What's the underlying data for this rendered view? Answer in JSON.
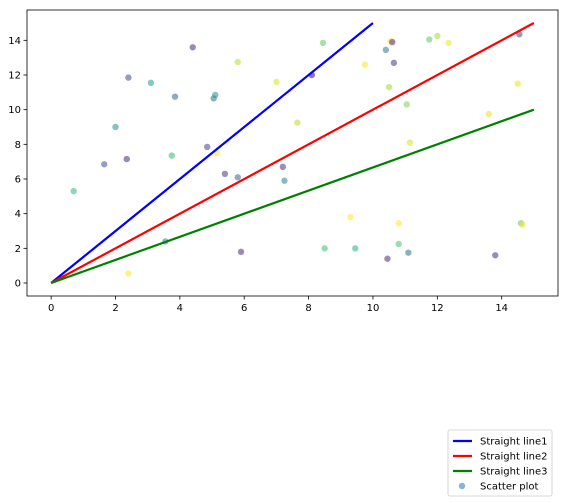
{
  "chart_data": {
    "type": "line+scatter",
    "title": "",
    "xlabel": "",
    "ylabel": "",
    "xlim": [
      -0.75,
      15.75
    ],
    "ylim": [
      -0.75,
      15.75
    ],
    "xticks": [
      0,
      2,
      4,
      6,
      8,
      10,
      12,
      14
    ],
    "yticks": [
      0,
      2,
      4,
      6,
      8,
      10,
      12,
      14
    ],
    "grid": false,
    "legend_placement": "bottom-right, outside axes",
    "lines": [
      {
        "name": "Straight line1",
        "color": "#0000ff",
        "x": [
          0,
          10
        ],
        "y": [
          0,
          15
        ]
      },
      {
        "name": "Straight line2",
        "color": "#ff0000",
        "x": [
          0,
          15
        ],
        "y": [
          0,
          15
        ]
      },
      {
        "name": "Straight line3",
        "color": "#008000",
        "x": [
          0,
          15
        ],
        "y": [
          0,
          10
        ]
      }
    ],
    "scatter": {
      "name": "Scatter plot",
      "legend_color": "#1f77b4",
      "points": [
        {
          "x": 0.7,
          "y": 5.3,
          "c": "#35b779"
        },
        {
          "x": 1.65,
          "y": 6.85,
          "c": "#3b528b"
        },
        {
          "x": 2.0,
          "y": 9.0,
          "c": "#21918c"
        },
        {
          "x": 2.35,
          "y": 7.15,
          "c": "#482878"
        },
        {
          "x": 2.4,
          "y": 11.85,
          "c": "#3e4989"
        },
        {
          "x": 2.4,
          "y": 0.55,
          "c": "#fde725"
        },
        {
          "x": 3.1,
          "y": 11.55,
          "c": "#1f9e89"
        },
        {
          "x": 3.55,
          "y": 2.4,
          "c": "#26828e"
        },
        {
          "x": 3.75,
          "y": 7.35,
          "c": "#35b779"
        },
        {
          "x": 3.85,
          "y": 10.75,
          "c": "#31688e"
        },
        {
          "x": 4.4,
          "y": 13.6,
          "c": "#482878"
        },
        {
          "x": 4.85,
          "y": 7.85,
          "c": "#414487"
        },
        {
          "x": 5.05,
          "y": 10.65,
          "c": "#2c728e"
        },
        {
          "x": 5.1,
          "y": 10.85,
          "c": "#21918c"
        },
        {
          "x": 5.15,
          "y": 7.5,
          "c": "#fde725"
        },
        {
          "x": 5.4,
          "y": 6.3,
          "c": "#443983"
        },
        {
          "x": 5.8,
          "y": 12.75,
          "c": "#b5de2b"
        },
        {
          "x": 5.8,
          "y": 6.1,
          "c": "#31688e"
        },
        {
          "x": 5.9,
          "y": 1.8,
          "c": "#472d7b"
        },
        {
          "x": 7.0,
          "y": 11.6,
          "c": "#dde318"
        },
        {
          "x": 7.2,
          "y": 6.7,
          "c": "#46337e"
        },
        {
          "x": 7.25,
          "y": 5.9,
          "c": "#25848e"
        },
        {
          "x": 7.65,
          "y": 9.25,
          "c": "#bddf26"
        },
        {
          "x": 8.1,
          "y": 12.0,
          "c": "#440154"
        },
        {
          "x": 8.45,
          "y": 13.85,
          "c": "#5ec962"
        },
        {
          "x": 8.5,
          "y": 2.0,
          "c": "#3fbc73"
        },
        {
          "x": 9.3,
          "y": 3.8,
          "c": "#fde725"
        },
        {
          "x": 9.45,
          "y": 2.0,
          "c": "#29af7f"
        },
        {
          "x": 9.75,
          "y": 12.6,
          "c": "#fde725"
        },
        {
          "x": 10.4,
          "y": 13.45,
          "c": "#2a788e"
        },
        {
          "x": 10.45,
          "y": 1.4,
          "c": "#472c7a"
        },
        {
          "x": 10.5,
          "y": 11.3,
          "c": "#a0da39"
        },
        {
          "x": 10.55,
          "y": 13.95,
          "c": "#fde725"
        },
        {
          "x": 10.6,
          "y": 13.9,
          "c": "#482878"
        },
        {
          "x": 10.65,
          "y": 12.7,
          "c": "#453781"
        },
        {
          "x": 10.8,
          "y": 3.45,
          "c": "#fde725"
        },
        {
          "x": 10.8,
          "y": 2.25,
          "c": "#4ac16d"
        },
        {
          "x": 11.05,
          "y": 10.3,
          "c": "#7ad151"
        },
        {
          "x": 11.1,
          "y": 1.75,
          "c": "#2c728e"
        },
        {
          "x": 11.15,
          "y": 8.1,
          "c": "#d2e21b"
        },
        {
          "x": 11.75,
          "y": 14.05,
          "c": "#5ec962"
        },
        {
          "x": 12.0,
          "y": 14.25,
          "c": "#a5db36"
        },
        {
          "x": 12.35,
          "y": 13.85,
          "c": "#f1e51d"
        },
        {
          "x": 13.6,
          "y": 9.75,
          "c": "#e5e419"
        },
        {
          "x": 13.8,
          "y": 1.6,
          "c": "#472d7b"
        },
        {
          "x": 14.5,
          "y": 11.5,
          "c": "#e5e419"
        },
        {
          "x": 14.55,
          "y": 14.35,
          "c": "#3e4989"
        },
        {
          "x": 14.6,
          "y": 3.45,
          "c": "#5ec962"
        },
        {
          "x": 14.65,
          "y": 3.35,
          "c": "#fde725"
        }
      ]
    }
  }
}
